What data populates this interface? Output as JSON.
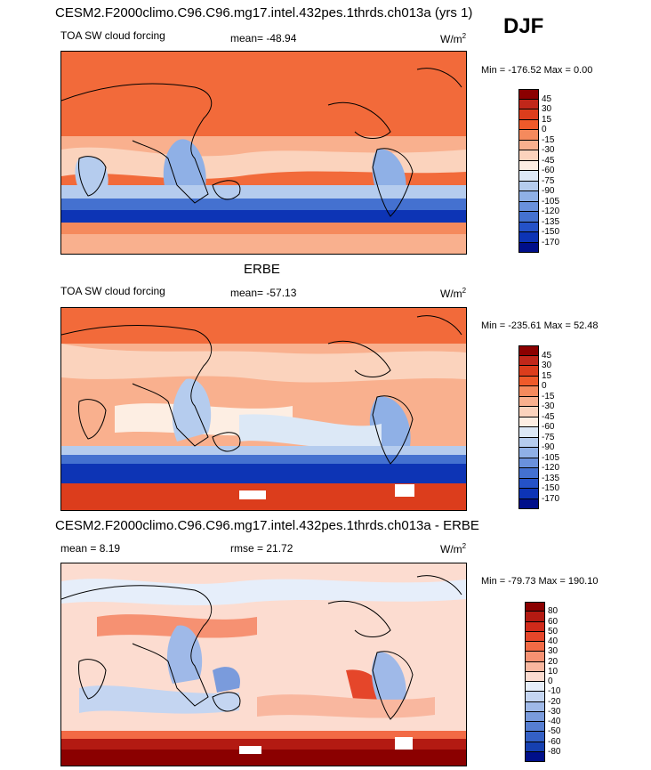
{
  "season": "DJF",
  "unit_display": "W/m",
  "unit_sup": "2",
  "panels": [
    {
      "title": "CESM2.F2000climo.C96.C96.mg17.intel.432pes.1thrds.ch013a (yrs 1)",
      "left_label": "TOA SW cloud forcing",
      "center_label": "mean= -48.94",
      "minmax": "Min = -176.52 Max =   0.00",
      "ticks": [
        "45",
        "30",
        "15",
        "0",
        "-15",
        "-30",
        "-45",
        "-60",
        "-75",
        "-90",
        "-105",
        "-120",
        "-135",
        "-150",
        "-170"
      ],
      "colors": [
        "#8b0000",
        "#c1271a",
        "#dc3d1c",
        "#ef5a2a",
        "#f58a5d",
        "#f9b08e",
        "#fbd3bd",
        "#fdeee3",
        "#dce8f6",
        "#b5ccee",
        "#8fb0e6",
        "#6a91dc",
        "#4471d0",
        "#2552c8",
        "#0d34b5",
        "#000f8a"
      ]
    },
    {
      "title": "ERBE",
      "left_label": "TOA SW cloud forcing",
      "center_label": "mean= -57.13",
      "minmax": "Min = -235.61 Max =  52.48",
      "ticks": [
        "45",
        "30",
        "15",
        "0",
        "-15",
        "-30",
        "-45",
        "-60",
        "-75",
        "-90",
        "-105",
        "-120",
        "-135",
        "-150",
        "-170"
      ],
      "colors": [
        "#8b0000",
        "#c1271a",
        "#dc3d1c",
        "#ef5a2a",
        "#f58a5d",
        "#f9b08e",
        "#fbd3bd",
        "#fdeee3",
        "#dce8f6",
        "#b5ccee",
        "#8fb0e6",
        "#6a91dc",
        "#4471d0",
        "#2552c8",
        "#0d34b5",
        "#000f8a"
      ]
    },
    {
      "title": "CESM2.F2000climo.C96.C96.mg17.intel.432pes.1thrds.ch013a - ERBE",
      "left_label": "mean =   8.19",
      "center_label": "rmse =  21.72",
      "minmax": "Min = -79.73 Max = 190.10",
      "ticks": [
        "80",
        "60",
        "50",
        "40",
        "30",
        "20",
        "10",
        "0",
        "-10",
        "-20",
        "-30",
        "-40",
        "-50",
        "-60",
        "-80"
      ],
      "colors": [
        "#8b0000",
        "#b31a12",
        "#d02a1a",
        "#e5462a",
        "#f26a45",
        "#f69172",
        "#f9b79f",
        "#fcdcd0",
        "#e6eefa",
        "#c4d5f1",
        "#9fb9e8",
        "#7a9bdc",
        "#567ed1",
        "#3460c5",
        "#1640b0",
        "#000f8a"
      ]
    }
  ]
}
